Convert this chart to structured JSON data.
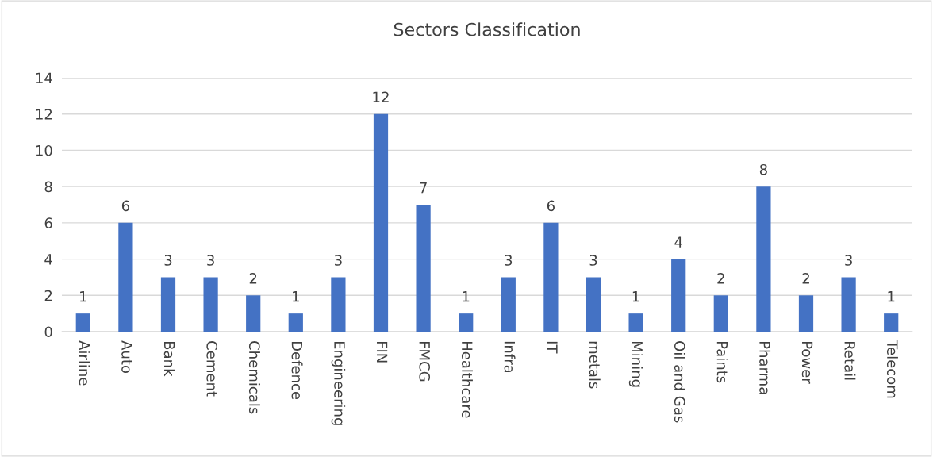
{
  "chart_data": {
    "type": "bar",
    "title": "Sectors Classification",
    "categories": [
      "Airline",
      "Auto",
      "Bank",
      "Cement",
      "Chemicals",
      "Defence",
      "Engineering",
      "FIN",
      "FMCG",
      "Healthcare",
      "Infra",
      "IT",
      "metals",
      "Mining",
      "Oil and Gas",
      "Paints",
      "Pharma",
      "Power",
      "Retail",
      "Telecom"
    ],
    "values": [
      1,
      6,
      3,
      3,
      2,
      1,
      3,
      12,
      7,
      1,
      3,
      6,
      3,
      1,
      4,
      2,
      8,
      2,
      3,
      1
    ],
    "color": "#4472c4",
    "ylim": [
      0,
      14
    ],
    "yticks": [
      0,
      2,
      4,
      6,
      8,
      10,
      12,
      14
    ],
    "grid": "y",
    "data_labels": true
  }
}
